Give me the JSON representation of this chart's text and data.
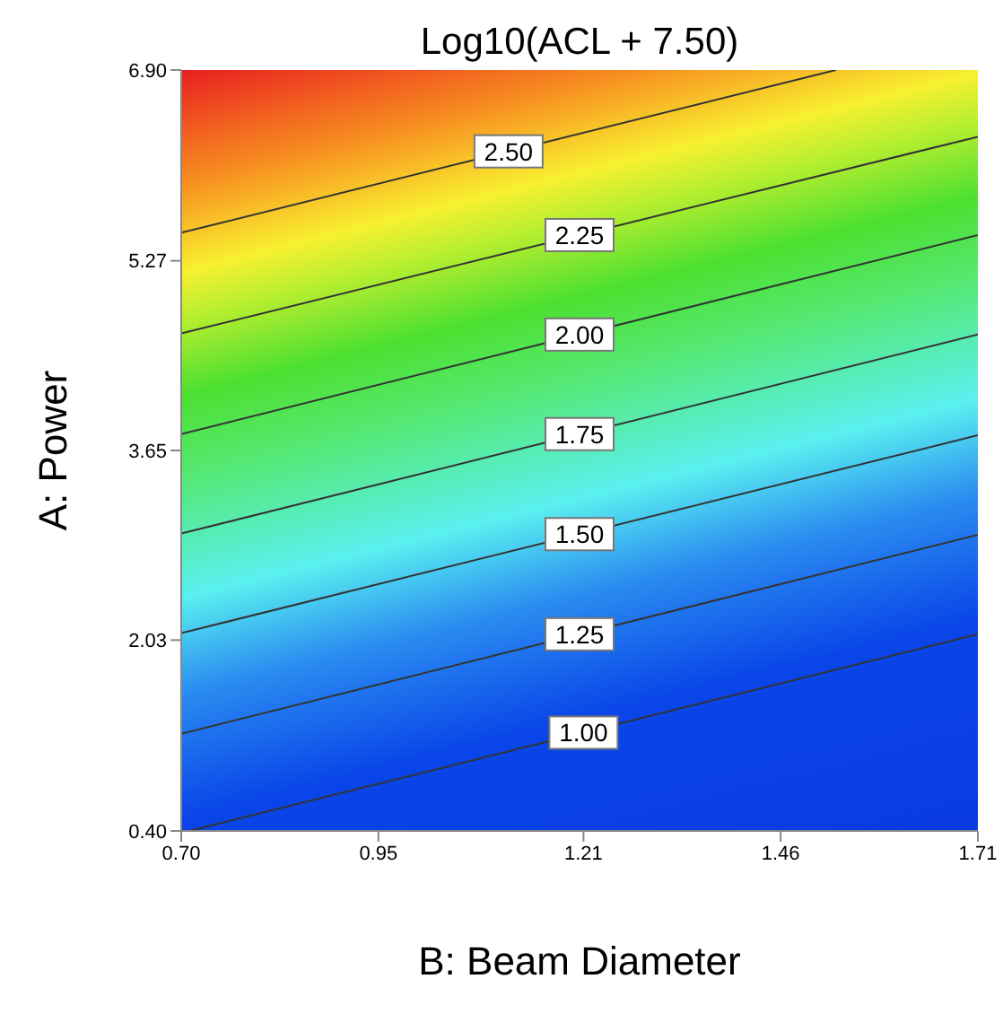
{
  "chart_data": {
    "type": "line",
    "title": "Log10(ACL + 7.50)",
    "xlabel": "B: Beam Diameter",
    "ylabel": "A: Power",
    "xlim": [
      0.7,
      1.71
    ],
    "ylim": [
      0.4,
      6.9
    ],
    "xticks": [
      {
        "value": 0.7,
        "label": "0.70"
      },
      0.95,
      1.21,
      1.46,
      1.71
    ],
    "yticks": [
      {
        "value": 0.4,
        "label": "0.40"
      },
      2.03,
      3.65,
      5.27,
      {
        "value": 6.9,
        "label": "6.90"
      }
    ],
    "marker": "none",
    "line_style": "solid",
    "series": [
      {
        "name": "2.50",
        "color": "#333333",
        "x": [
          0.7,
          1.53
        ],
        "values": [
          5.51,
          6.9
        ]
      },
      {
        "name": "2.25",
        "color": "#333333",
        "x": [
          0.7,
          1.71
        ],
        "values": [
          4.65,
          6.33
        ]
      },
      {
        "name": "2.00",
        "color": "#333333",
        "x": [
          0.7,
          1.71
        ],
        "values": [
          3.79,
          5.49
        ]
      },
      {
        "name": "1.75",
        "color": "#333333",
        "x": [
          0.7,
          1.71
        ],
        "values": [
          2.94,
          4.64
        ]
      },
      {
        "name": "1.50",
        "color": "#333333",
        "x": [
          0.7,
          1.71
        ],
        "values": [
          2.09,
          3.78
        ]
      },
      {
        "name": "1.25",
        "color": "#333333",
        "x": [
          0.7,
          1.71
        ],
        "values": [
          1.23,
          2.93
        ]
      },
      {
        "name": "1.00",
        "color": "#333333",
        "x": [
          0.71,
          1.71
        ],
        "values": [
          0.4,
          2.08
        ]
      }
    ]
  }
}
